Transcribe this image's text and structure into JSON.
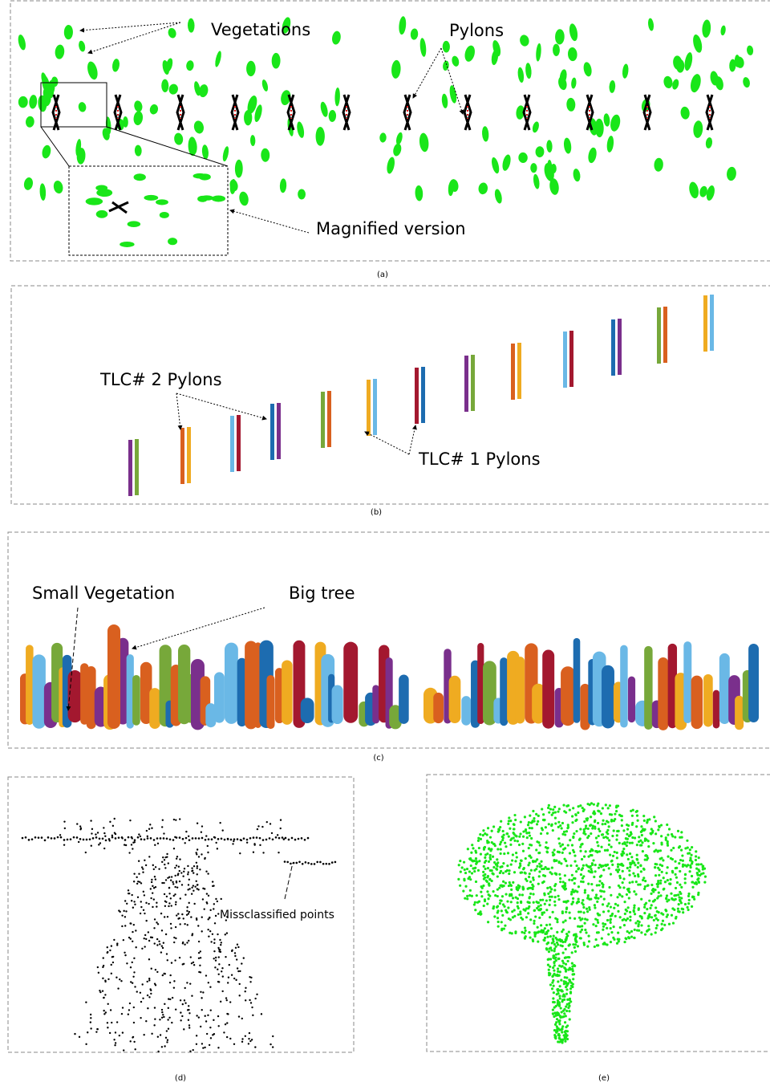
{
  "panels": [
    {
      "caption": "(a)",
      "labels": [
        "Vegetations",
        "Pylons",
        "Magnified version"
      ]
    },
    {
      "caption": "(b)",
      "labels": [
        "TLC# 2 Pylons",
        "TLC# 1 Pylons"
      ]
    },
    {
      "caption": "(c)",
      "labels": [
        "Small Vegetation",
        "Big tree"
      ]
    },
    {
      "caption": "(d)",
      "labels": [
        "Missclassified points"
      ]
    },
    {
      "caption": "(e)",
      "labels": []
    }
  ]
}
